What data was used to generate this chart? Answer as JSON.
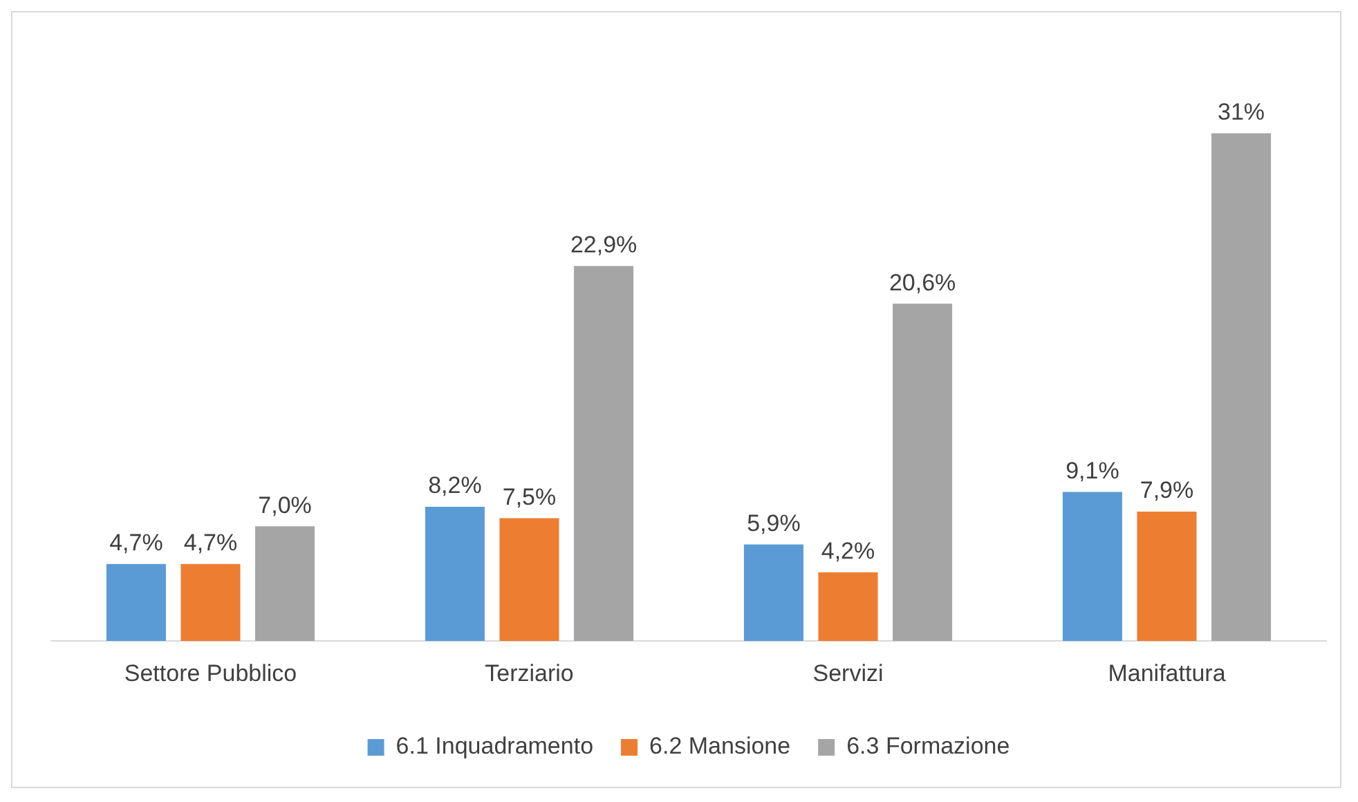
{
  "chart_data": {
    "type": "bar",
    "categories": [
      "Settore Pubblico",
      "Terziario",
      "Servizi",
      "Manifattura"
    ],
    "series": [
      {
        "name": "6.1 Inquadramento",
        "color": "#5b9bd5",
        "values": [
          4.7,
          8.2,
          5.9,
          9.1
        ],
        "value_labels": [
          "4,7%",
          "8,2%",
          "5,9%",
          "9,1%"
        ]
      },
      {
        "name": "6.2 Mansione",
        "color": "#ed7d31",
        "values": [
          4.7,
          7.5,
          4.2,
          7.9
        ],
        "value_labels": [
          "4,7%",
          "7,5%",
          "4,2%",
          "7,9%"
        ]
      },
      {
        "name": "6.3 Formazione",
        "color": "#a5a5a5",
        "values": [
          7.0,
          22.9,
          20.6,
          31
        ],
        "value_labels": [
          "7,0%",
          "22,9%",
          "20,6%",
          "31%"
        ]
      }
    ],
    "grid": false,
    "legend": "bottom"
  }
}
